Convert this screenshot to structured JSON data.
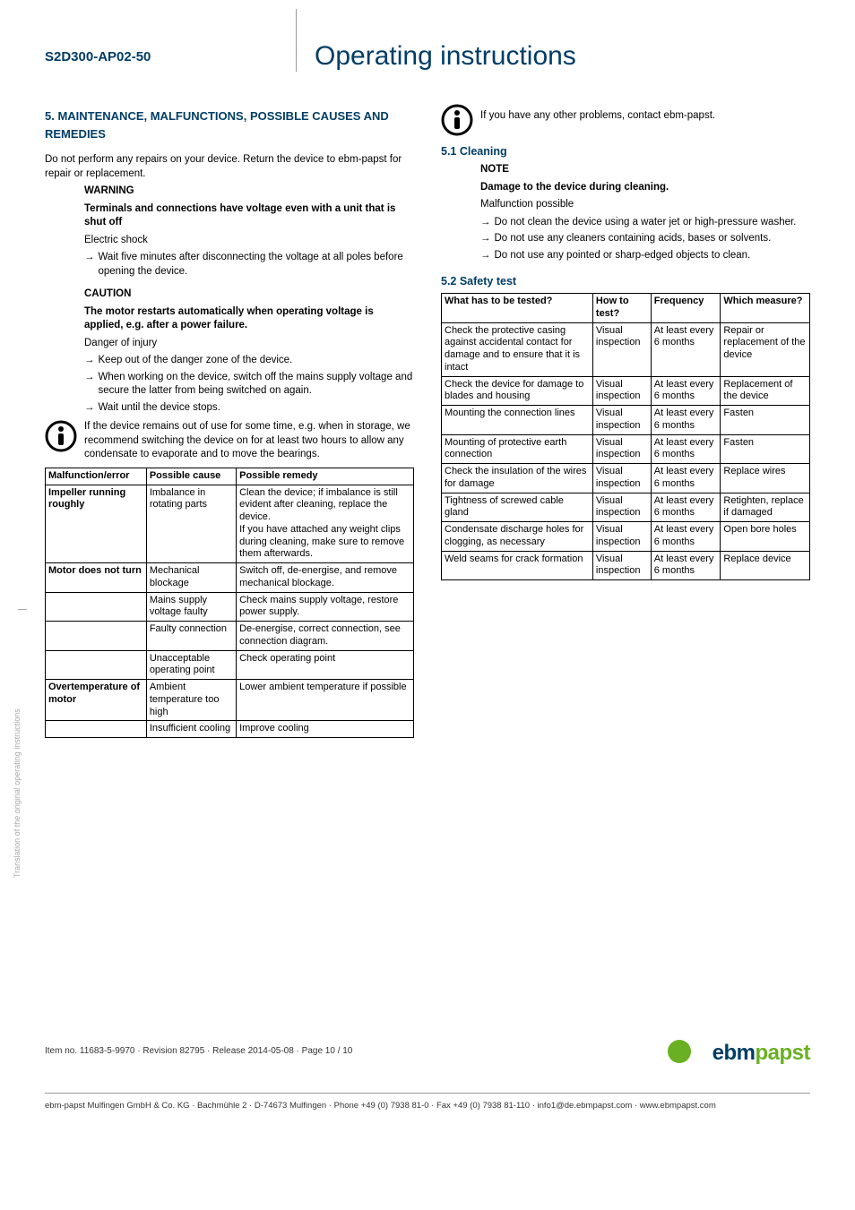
{
  "header": {
    "product_code": "S2D300-AP02-50",
    "doc_title": "Operating instructions"
  },
  "section5": {
    "title": "5. MAINTENANCE, MALFUNCTIONS, POSSIBLE CAUSES AND REMEDIES",
    "intro": "Do not perform any repairs on your device. Return the device to ebm-papst for repair or replacement.",
    "warning_label": "WARNING",
    "warning_bold": "Terminals and connections have voltage even with a unit that is shut off",
    "warning_line": "Electric shock",
    "warning_arrow": "Wait five minutes after disconnecting the voltage at all poles before opening the device.",
    "caution_label": "CAUTION",
    "caution_bold": "The motor restarts automatically when operating voltage is applied, e.g. after a power failure.",
    "caution_line": "Danger of injury",
    "caution_arrows": [
      "Keep out of the danger zone of the device.",
      "When working on the device, switch off the mains supply voltage and secure the latter from being switched on again.",
      "Wait until the device stops."
    ],
    "info1": "If the device remains out of use for some time, e.g. when in storage, we recommend switching the device on for at least two hours to allow any condensate to evaporate and to move the bearings."
  },
  "malfunction_table": {
    "headers": [
      "Malfunction/error",
      "Possible cause",
      "Possible remedy"
    ],
    "rows": [
      [
        "Impeller running roughly",
        "Imbalance in rotating parts",
        "Clean the device; if imbalance is still evident after cleaning, replace the device.\nIf you have attached any weight clips during cleaning, make sure to remove them afterwards."
      ],
      [
        "Motor does not turn",
        "Mechanical blockage",
        "Switch off, de-energise, and remove mechanical blockage."
      ],
      [
        "",
        "Mains supply voltage faulty",
        "Check mains supply voltage, restore power supply."
      ],
      [
        "",
        "Faulty connection",
        "De-energise, correct connection, see connection diagram."
      ],
      [
        "",
        "Unacceptable operating point",
        "Check operating point"
      ],
      [
        "Overtemperature of motor",
        "Ambient temperature too high",
        "Lower ambient temperature if possible"
      ],
      [
        "",
        "Insufficient cooling",
        "Improve cooling"
      ]
    ],
    "bold_first_col": [
      true,
      true,
      false,
      false,
      false,
      true,
      false
    ]
  },
  "right_info": "If you have any other problems, contact ebm-papst.",
  "cleaning": {
    "title": "5.1 Cleaning",
    "note_label": "NOTE",
    "note_bold": "Damage to the device during cleaning.",
    "note_line": "Malfunction possible",
    "arrows": [
      "Do not clean the device using a water jet or high-pressure washer.",
      "Do not use any cleaners containing acids, bases or solvents.",
      "Do not use any pointed or sharp-edged objects to clean."
    ]
  },
  "safety": {
    "title": "5.2 Safety test",
    "headers": [
      "What has to be tested?",
      "How to test?",
      "Frequency",
      "Which measure?"
    ],
    "rows": [
      [
        "Check the protective casing against accidental contact for damage and to ensure that it is intact",
        "Visual inspection",
        "At least every 6 months",
        "Repair or replacement of the device"
      ],
      [
        "Check the device for damage to blades and housing",
        "Visual inspection",
        "At least every 6 months",
        "Replacement of the device"
      ],
      [
        "Mounting the connection lines",
        "Visual inspection",
        "At least every 6 months",
        "Fasten"
      ],
      [
        "Mounting of protective earth connection",
        "Visual inspection",
        "At least every 6 months",
        "Fasten"
      ],
      [
        "Check the insulation of the wires for damage",
        "Visual inspection",
        "At least every 6 months",
        "Replace wires"
      ],
      [
        "Tightness of screwed cable gland",
        "Visual inspection",
        "At least every 6 months",
        "Retighten, replace if damaged"
      ],
      [
        "Condensate discharge holes for clogging, as necessary",
        "Visual inspection",
        "At least every 6 months",
        "Open bore holes"
      ],
      [
        "Weld seams for crack formation",
        "Visual inspection",
        "At least every 6 months",
        "Replace device"
      ]
    ]
  },
  "side_text": "Translation of the original operating instructions",
  "footer": {
    "meta": "Item no. 11683-5-9970 · Revision 82795 · Release 2014-05-08 · Page 10 / 10",
    "company": "ebm-papst Mulfingen GmbH & Co. KG · Bachmühle 2 · D-74673 Mulfingen · Phone +49 (0) 7938 81-0 · Fax +49 (0) 7938 81-110 · info1@de.ebmpapst.com · www.ebmpapst.com",
    "logo_ebm": "ebm",
    "logo_papst": "papst"
  }
}
